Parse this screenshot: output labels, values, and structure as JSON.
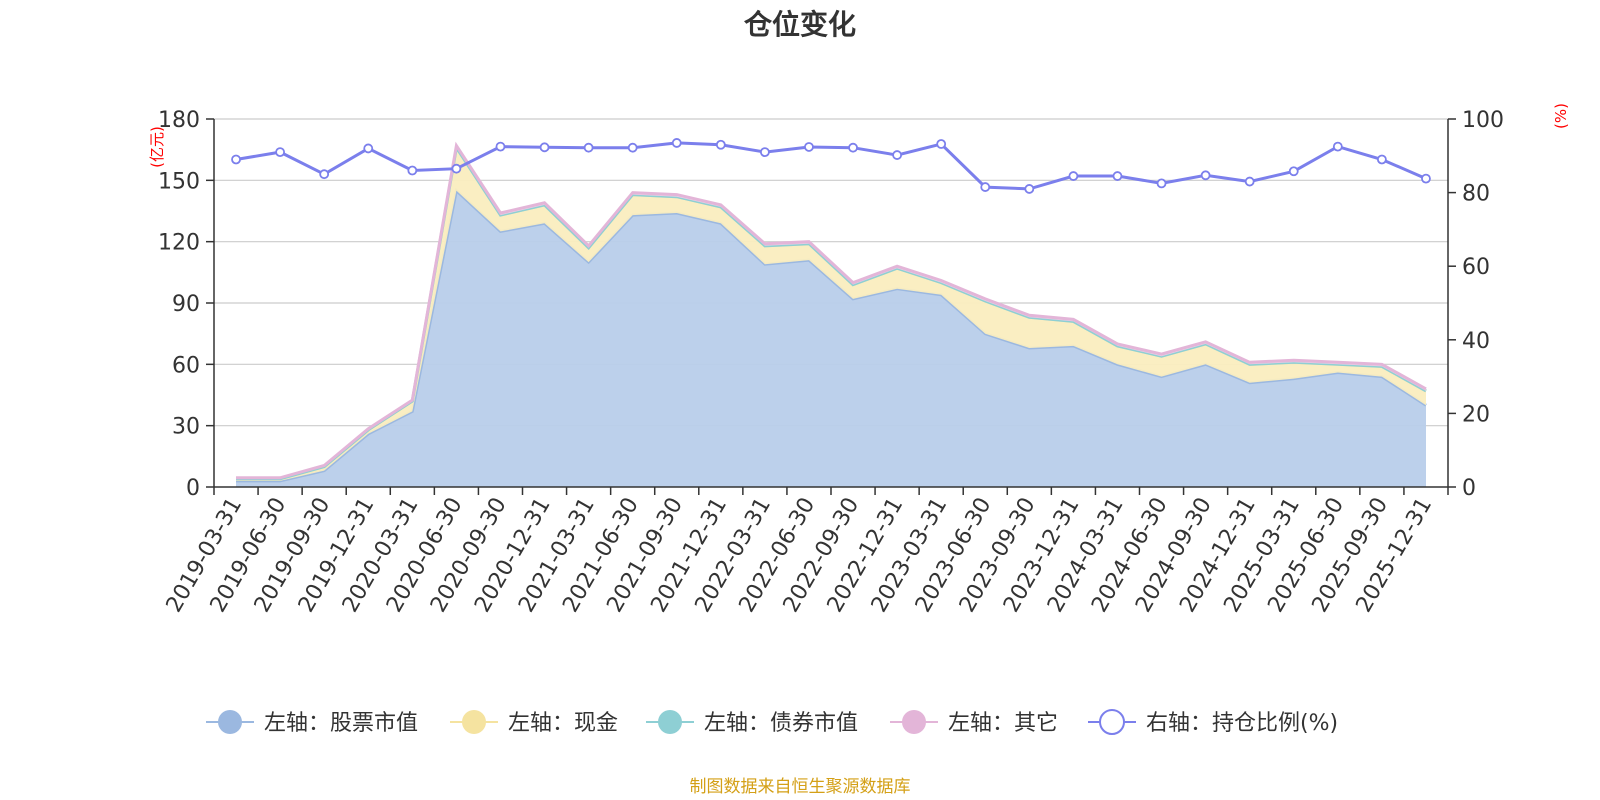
{
  "chart_data": {
    "type": "area",
    "title": "仓位变化",
    "source_note": "制图数据来自恒生聚源数据库",
    "left_axis": {
      "unit": "(亿元)",
      "min": 0,
      "max": 180,
      "ticks": [
        0,
        30,
        60,
        90,
        120,
        150,
        180
      ]
    },
    "right_axis": {
      "unit": "(%)",
      "min": 0,
      "max": 100,
      "ticks": [
        0,
        20,
        40,
        60,
        80,
        100
      ]
    },
    "grid": true,
    "legend_position": "bottom",
    "x": [
      "2019-03-31",
      "2019-06-30",
      "2019-09-30",
      "2019-12-31",
      "2020-03-31",
      "2020-06-30",
      "2020-09-30",
      "2020-12-31",
      "2021-03-31",
      "2021-06-30",
      "2021-09-30",
      "2021-12-31",
      "2022-03-31",
      "2022-06-30",
      "2022-09-30",
      "2022-12-31",
      "2023-03-31",
      "2023-06-30",
      "2023-09-30",
      "2023-12-31",
      "2024-03-31",
      "2024-06-30",
      "2024-09-30",
      "2024-12-31",
      "2025-03-31",
      "2025-06-30",
      "2025-09-30",
      "2025-12-31"
    ],
    "series": [
      {
        "name": "左轴：股票市值",
        "axis": "left",
        "kind": "stacked-area",
        "color": "#9bb8e0",
        "fill": "#b8cdea",
        "values": [
          3,
          3,
          8,
          26,
          37,
          145,
          125,
          129,
          110,
          133,
          134,
          129,
          109,
          111,
          92,
          97,
          94,
          75,
          68,
          69,
          60,
          54,
          60,
          51,
          53,
          56,
          54,
          40
        ]
      },
      {
        "name": "左轴：现金",
        "axis": "left",
        "kind": "stacked-area",
        "color": "#f5e3a0",
        "fill": "#faedbf",
        "values": [
          1,
          1,
          2,
          2,
          5,
          21,
          8,
          9,
          7,
          10,
          8,
          8,
          9,
          8,
          7,
          10,
          6,
          16,
          15,
          12,
          9,
          10,
          10,
          9,
          8,
          4,
          5,
          7
        ]
      },
      {
        "name": "左轴：债券市值",
        "axis": "left",
        "kind": "stacked-area",
        "color": "#8ecfd4",
        "fill": "#b5e0e3",
        "values": [
          0,
          0,
          0,
          0,
          0,
          0,
          0,
          0,
          0,
          0,
          0,
          0,
          0,
          0,
          0,
          0,
          0,
          0,
          0,
          0,
          0,
          0,
          0,
          0,
          0,
          0,
          0,
          0
        ]
      },
      {
        "name": "左轴：其它",
        "axis": "left",
        "kind": "stacked-area",
        "color": "#e3b5d8",
        "fill": "#f0d3e8",
        "values": [
          0.5,
          0.5,
          0.5,
          0.5,
          0.5,
          1,
          1,
          1,
          1,
          1,
          1,
          1,
          1,
          1,
          1,
          1,
          1,
          1,
          1,
          1,
          1,
          1,
          1,
          1,
          1,
          1,
          1,
          1
        ]
      },
      {
        "name": "右轴：持仓比例(%)",
        "axis": "right",
        "kind": "line",
        "color": "#7b7fec",
        "values": [
          89,
          91,
          85,
          92,
          86,
          86.5,
          92.5,
          92.3,
          92.2,
          92.2,
          93.5,
          93,
          91,
          92.4,
          92.2,
          90.2,
          93.2,
          81.5,
          81,
          84.5,
          84.5,
          82.5,
          84.7,
          83,
          85.8,
          92.5,
          89,
          83.8
        ]
      }
    ]
  }
}
